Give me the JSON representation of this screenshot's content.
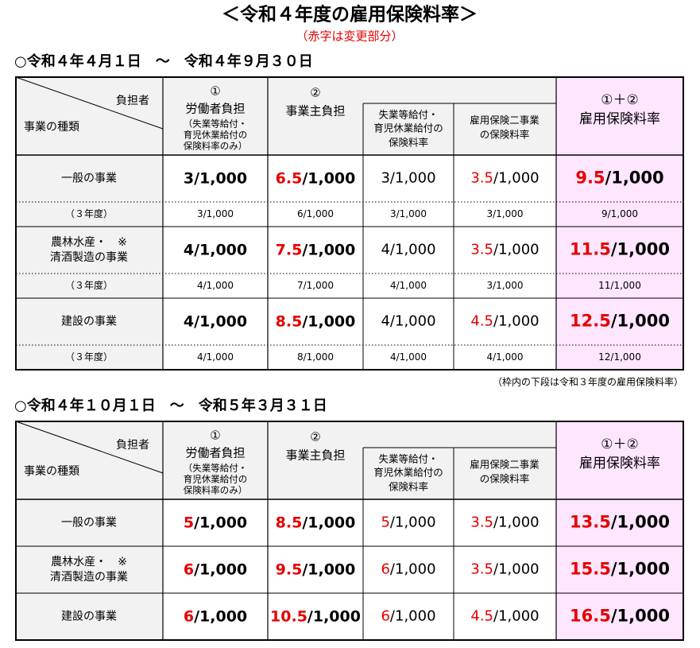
{
  "header": {
    "title": "＜令和４年度の雇用保険料率＞",
    "note": "（赤字は変更部分）"
  },
  "sections": [
    {
      "heading": "○令和４年４月１日　～　令和４年９月３０日",
      "table": {
        "header": {
          "payer": "負担者",
          "kind": "事業の種類",
          "worker": [
            "①",
            "労働者負担",
            "（失業等給付・",
            "育児休業給付の",
            "保険料率のみ）"
          ],
          "employer": [
            "②",
            "事業主負担"
          ],
          "unemployment": [
            "失業等給付・",
            "育児休業給付の",
            "保険料率"
          ],
          "two_projects": [
            "雇用保険二事業",
            "の保険料率"
          ],
          "total": [
            "①＋②",
            "雇用保険料率"
          ]
        },
        "rows": [
          {
            "label": [
              "一般の事業"
            ],
            "values": [
              [
                {
                  "text": "3/1,000"
                }
              ],
              [
                {
                  "text": "6.5",
                  "red": true
                },
                {
                  "text": "/1,000"
                }
              ],
              [
                {
                  "text": "3/1,000"
                }
              ],
              [
                {
                  "text": "3.5",
                  "red": true
                },
                {
                  "text": "/1,000"
                }
              ],
              [
                {
                  "text": "9.5",
                  "red": true
                },
                {
                  "text": "/1,000"
                }
              ]
            ],
            "previous_label": "（３年度）",
            "previous": [
              "3/1,000",
              "6/1,000",
              "3/1,000",
              "3/1,000",
              "9/1,000"
            ]
          },
          {
            "label": [
              "農林水産・　※",
              "清酒製造の事業"
            ],
            "values": [
              [
                {
                  "text": "4/1,000"
                }
              ],
              [
                {
                  "text": "7.5",
                  "red": true
                },
                {
                  "text": "/1,000"
                }
              ],
              [
                {
                  "text": "4/1,000"
                }
              ],
              [
                {
                  "text": "3.5",
                  "red": true
                },
                {
                  "text": "/1,000"
                }
              ],
              [
                {
                  "text": "11.5",
                  "red": true
                },
                {
                  "text": "/1,000"
                }
              ]
            ],
            "previous_label": "（３年度）",
            "previous": [
              "4/1,000",
              "7/1,000",
              "4/1,000",
              "3/1,000",
              "11/1,000"
            ]
          },
          {
            "label": [
              "建設の事業"
            ],
            "values": [
              [
                {
                  "text": "4/1,000"
                }
              ],
              [
                {
                  "text": "8.5",
                  "red": true
                },
                {
                  "text": "/1,000"
                }
              ],
              [
                {
                  "text": "4/1,000"
                }
              ],
              [
                {
                  "text": "4.5",
                  "red": true
                },
                {
                  "text": "/1,000"
                }
              ],
              [
                {
                  "text": "12.5",
                  "red": true
                },
                {
                  "text": "/1,000"
                }
              ]
            ],
            "previous_label": "（３年度）",
            "previous": [
              "4/1,000",
              "8/1,000",
              "4/1,000",
              "4/1,000",
              "12/1,000"
            ]
          }
        ]
      },
      "footnote": "（枠内の下段は令和３年度の雇用保険料率）"
    },
    {
      "heading": "○令和４年１０月１日　～　令和５年３月３１日",
      "table": {
        "header": {
          "payer": "負担者",
          "kind": "事業の種類",
          "worker": [
            "①",
            "労働者負担",
            "（失業等給付・",
            "育児休業給付の",
            "保険料率のみ）"
          ],
          "employer": [
            "②",
            "事業主負担"
          ],
          "unemployment": [
            "失業等給付・",
            "育児休業給付の",
            "保険料率"
          ],
          "two_projects": [
            "雇用保険二事業",
            "の保険料率"
          ],
          "total": [
            "①＋②",
            "雇用保険料率"
          ]
        },
        "rows": [
          {
            "label": [
              "一般の事業"
            ],
            "values": [
              [
                {
                  "text": "5",
                  "red": true
                },
                {
                  "text": "/1,000"
                }
              ],
              [
                {
                  "text": "8.5",
                  "red": true
                },
                {
                  "text": "/1,000"
                }
              ],
              [
                {
                  "text": "5",
                  "red": true
                },
                {
                  "text": "/1,000"
                }
              ],
              [
                {
                  "text": "3.5",
                  "red": true
                },
                {
                  "text": "/1,000"
                }
              ],
              [
                {
                  "text": "13.5",
                  "red": true
                },
                {
                  "text": "/1,000"
                }
              ]
            ]
          },
          {
            "label": [
              "農林水産・　※",
              "清酒製造の事業"
            ],
            "values": [
              [
                {
                  "text": "6",
                  "red": true
                },
                {
                  "text": "/1,000"
                }
              ],
              [
                {
                  "text": "9.5",
                  "red": true
                },
                {
                  "text": "/1,000"
                }
              ],
              [
                {
                  "text": "6",
                  "red": true
                },
                {
                  "text": "/1,000"
                }
              ],
              [
                {
                  "text": "3.5",
                  "red": true
                },
                {
                  "text": "/1,000"
                }
              ],
              [
                {
                  "text": "15.5",
                  "red": true
                },
                {
                  "text": "/1,000"
                }
              ]
            ]
          },
          {
            "label": [
              "建設の事業"
            ],
            "values": [
              [
                {
                  "text": "6",
                  "red": true
                },
                {
                  "text": "/1,000"
                }
              ],
              [
                {
                  "text": "10.5",
                  "red": true
                },
                {
                  "text": "/1,000"
                }
              ],
              [
                {
                  "text": "6",
                  "red": true
                },
                {
                  "text": "/1,000"
                }
              ],
              [
                {
                  "text": "4.5",
                  "red": true
                },
                {
                  "text": "/1,000"
                }
              ],
              [
                {
                  "text": "16.5",
                  "red": true
                },
                {
                  "text": "/1,000"
                }
              ]
            ]
          }
        ]
      }
    }
  ]
}
